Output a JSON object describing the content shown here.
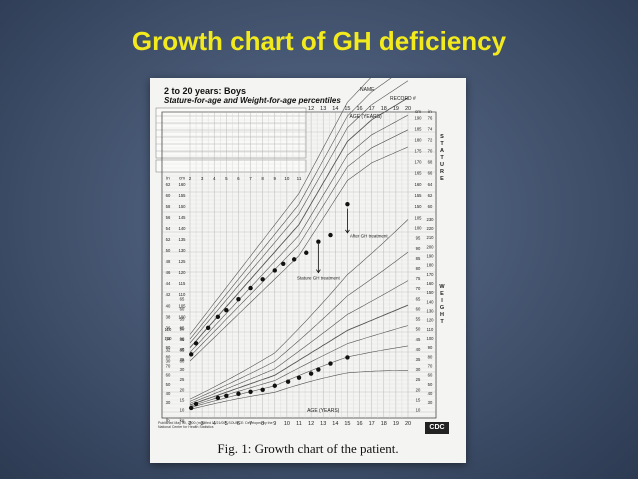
{
  "slide": {
    "title": "Growth chart of GH deficiency"
  },
  "chart_card": {
    "header_title": "2 to 20 years: Boys",
    "header_subtitle": "Stature-for-age and Weight-for-age percentiles",
    "name_label": "NAME",
    "record_label": "RECORD #",
    "caption": "Fig. 1: Growth chart of the patient.",
    "logo_text": "CDC",
    "footnote": "Published May 30, 2000 (modified 11/21/00). SOURCE: Developed by the National Center for Health Statistics"
  },
  "chart_data": {
    "type": "scatter",
    "xlabel_top": "AGE (YEARS)",
    "xlabel_bottom": "AGE (YEARS)",
    "right_axis_label_top": "STATURE",
    "right_axis_label_bottom": "WEIGHT",
    "unit_labels": {
      "cm": "cm",
      "in": "in",
      "kg": "kg",
      "lb": "lb"
    },
    "x_ticks": [
      2,
      3,
      4,
      5,
      6,
      7,
      8,
      9,
      10,
      11,
      12,
      13,
      14,
      15,
      16,
      17,
      18,
      19,
      20
    ],
    "x_ticks_top": [
      12,
      13,
      14,
      15,
      16,
      17,
      18,
      19,
      20
    ],
    "stature_ticks_cm": [
      80,
      85,
      90,
      95,
      100,
      105,
      110,
      115,
      120,
      125,
      130,
      135,
      140,
      145,
      150,
      155,
      160
    ],
    "stature_ticks_cm_right": [
      150,
      155,
      160,
      165,
      170,
      175,
      180,
      185,
      190
    ],
    "stature_ticks_in_left": [
      30,
      32,
      34,
      36,
      38,
      40,
      42,
      44,
      46,
      48,
      50,
      52,
      54,
      56,
      58,
      60,
      62
    ],
    "stature_ticks_in_right": [
      60,
      62,
      64,
      66,
      68,
      70,
      72,
      74,
      76
    ],
    "weight_ticks_kg": [
      10,
      15,
      20,
      25,
      30,
      35,
      40,
      45,
      50,
      55,
      60,
      65,
      70,
      75,
      80,
      85,
      90,
      95,
      100,
      105
    ],
    "weight_ticks_lb": [
      30,
      40,
      50,
      60,
      70,
      80,
      90,
      100,
      110,
      120,
      130,
      140,
      150,
      160,
      170,
      180,
      190,
      200,
      210,
      220,
      230
    ],
    "annotations": [
      {
        "text": "After GH treatment",
        "x": 15.2,
        "y_cm": 136
      },
      {
        "text": "Stature GH treatment",
        "x": 12.6,
        "y_cm": 117
      }
    ],
    "series": [
      {
        "name": "Stature",
        "points": [
          {
            "age": 2.1,
            "cm": 83
          },
          {
            "age": 2.5,
            "cm": 88
          },
          {
            "age": 3.5,
            "cm": 95
          },
          {
            "age": 4.3,
            "cm": 100
          },
          {
            "age": 5.0,
            "cm": 103
          },
          {
            "age": 6.0,
            "cm": 108
          },
          {
            "age": 7.0,
            "cm": 113
          },
          {
            "age": 8.0,
            "cm": 117
          },
          {
            "age": 9.0,
            "cm": 121
          },
          {
            "age": 9.7,
            "cm": 124
          },
          {
            "age": 10.6,
            "cm": 126
          },
          {
            "age": 11.6,
            "cm": 129
          },
          {
            "age": 12.6,
            "cm": 134
          },
          {
            "age": 13.6,
            "cm": 137
          },
          {
            "age": 15.0,
            "cm": 151
          }
        ]
      },
      {
        "name": "Weight",
        "points": [
          {
            "age": 2.1,
            "kg": 11
          },
          {
            "age": 2.5,
            "kg": 13
          },
          {
            "age": 4.3,
            "kg": 16
          },
          {
            "age": 5.0,
            "kg": 17
          },
          {
            "age": 6.0,
            "kg": 18
          },
          {
            "age": 7.0,
            "kg": 19
          },
          {
            "age": 8.0,
            "kg": 20
          },
          {
            "age": 9.0,
            "kg": 22
          },
          {
            "age": 10.1,
            "kg": 24
          },
          {
            "age": 11.0,
            "kg": 26
          },
          {
            "age": 12.0,
            "kg": 28
          },
          {
            "age": 12.6,
            "kg": 30
          },
          {
            "age": 13.6,
            "kg": 33
          },
          {
            "age": 15.0,
            "kg": 36
          }
        ]
      }
    ]
  }
}
